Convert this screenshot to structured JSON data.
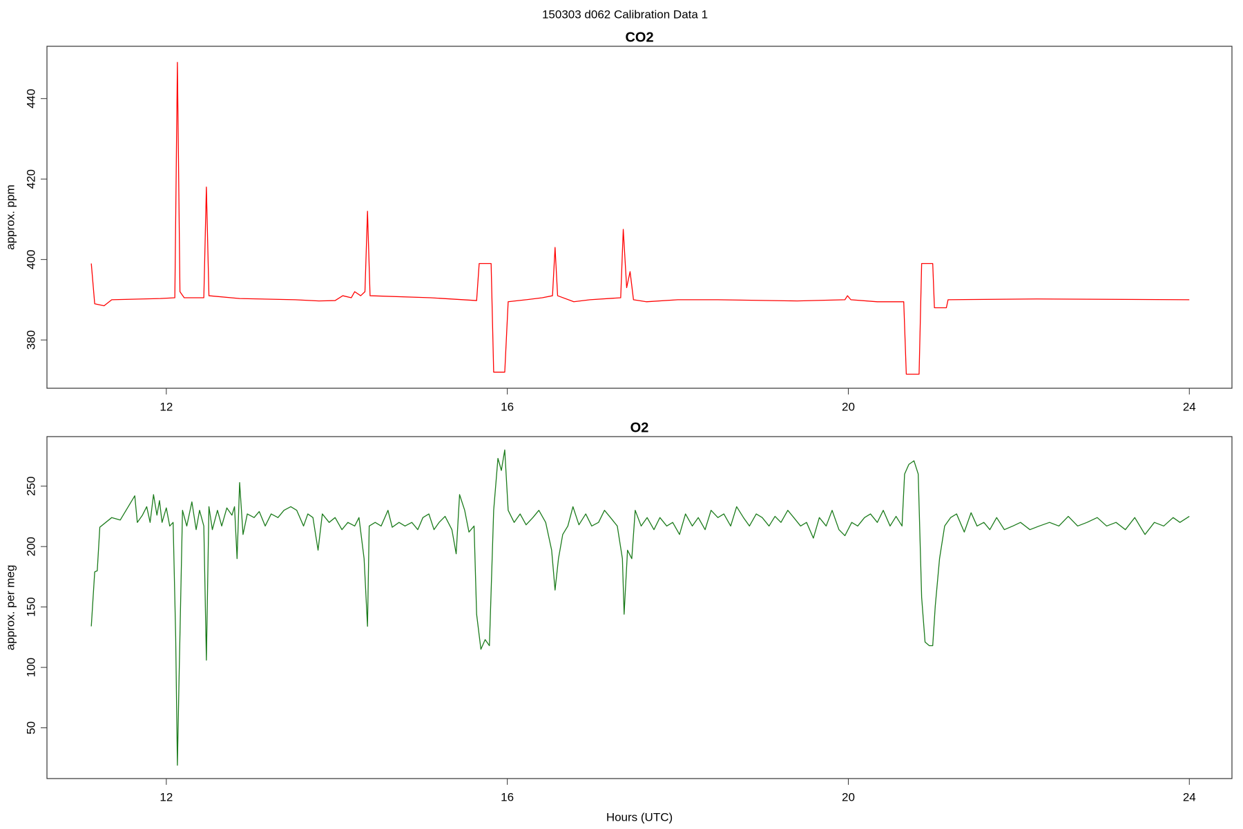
{
  "title": "150303   d062   Calibration Data 1",
  "chart_data": [
    {
      "type": "line",
      "title": "CO2",
      "ylabel": "approx. ppm",
      "color": "#ff0000",
      "xlim": [
        10.6,
        24.5
      ],
      "ylim": [
        368,
        453
      ],
      "xticks": [
        12,
        16,
        20,
        24
      ],
      "yticks": [
        380,
        400,
        420,
        440
      ],
      "grid": false,
      "x": [
        11.12,
        11.16,
        11.27,
        11.36,
        11.93,
        12.1,
        12.13,
        12.16,
        12.21,
        12.44,
        12.47,
        12.5,
        12.86,
        13.51,
        13.79,
        13.98,
        14.07,
        14.17,
        14.21,
        14.28,
        14.33,
        14.36,
        14.39,
        15.1,
        15.64,
        15.67,
        15.81,
        15.84,
        15.97,
        16.01,
        16.22,
        16.41,
        16.53,
        16.56,
        16.59,
        16.78,
        16.97,
        17.33,
        17.36,
        17.4,
        17.44,
        17.48,
        17.63,
        18.0,
        18.47,
        19.4,
        19.96,
        19.99,
        20.03,
        20.34,
        20.65,
        20.68,
        20.83,
        20.86,
        20.99,
        21.01,
        21.15,
        21.17,
        22.21,
        24.0
      ],
      "values": [
        399,
        389,
        388.5,
        390,
        390.3,
        390.5,
        449,
        392,
        390.5,
        390.5,
        418,
        391,
        390.3,
        390,
        389.7,
        389.8,
        391,
        390.5,
        392,
        391,
        392,
        412,
        391,
        390.5,
        389.8,
        399,
        399,
        372,
        372,
        389.5,
        390,
        390.5,
        391,
        403,
        391,
        389.5,
        390,
        390.5,
        407.5,
        393,
        397,
        390,
        389.5,
        390,
        390,
        389.7,
        390,
        391,
        390,
        389.5,
        389.5,
        371.5,
        371.5,
        399,
        399,
        388,
        388,
        390,
        390.2,
        390
      ]
    },
    {
      "type": "line",
      "title": "O2",
      "ylabel": "approx. per meg",
      "xlabel": "Hours (UTC)",
      "color": "#1a7a1a",
      "xlim": [
        10.6,
        24.5
      ],
      "ylim": [
        8,
        291
      ],
      "xticks": [
        12,
        16,
        20,
        24
      ],
      "yticks": [
        50,
        100,
        150,
        200,
        250
      ],
      "grid": false,
      "x": [
        11.12,
        11.16,
        11.19,
        11.22,
        11.36,
        11.46,
        11.63,
        11.66,
        11.72,
        11.77,
        11.81,
        11.85,
        11.89,
        11.92,
        11.95,
        12.0,
        12.04,
        12.08,
        12.11,
        12.13,
        12.15,
        12.19,
        12.24,
        12.3,
        12.35,
        12.39,
        12.44,
        12.47,
        12.5,
        12.54,
        12.6,
        12.65,
        12.71,
        12.77,
        12.8,
        12.83,
        12.86,
        12.9,
        12.95,
        13.03,
        13.09,
        13.16,
        13.23,
        13.31,
        13.38,
        13.46,
        13.53,
        13.61,
        13.66,
        13.72,
        13.78,
        13.83,
        13.91,
        13.98,
        14.06,
        14.13,
        14.21,
        14.26,
        14.32,
        14.36,
        14.38,
        14.45,
        14.52,
        14.6,
        14.65,
        14.73,
        14.8,
        14.88,
        14.95,
        15.01,
        15.08,
        15.14,
        15.2,
        15.27,
        15.35,
        15.4,
        15.44,
        15.5,
        15.55,
        15.61,
        15.64,
        15.69,
        15.74,
        15.79,
        15.84,
        15.89,
        15.93,
        15.97,
        16.01,
        16.08,
        16.15,
        16.22,
        16.3,
        16.37,
        16.45,
        16.52,
        16.56,
        16.6,
        16.65,
        16.71,
        16.77,
        16.84,
        16.92,
        16.99,
        17.07,
        17.14,
        17.21,
        17.29,
        17.35,
        17.37,
        17.41,
        17.46,
        17.5,
        17.57,
        17.64,
        17.72,
        17.79,
        17.87,
        17.94,
        18.02,
        18.09,
        18.17,
        18.24,
        18.32,
        18.39,
        18.47,
        18.54,
        18.62,
        18.69,
        18.77,
        18.84,
        18.92,
        18.99,
        19.07,
        19.14,
        19.21,
        19.29,
        19.36,
        19.44,
        19.51,
        19.59,
        19.66,
        19.74,
        19.81,
        19.89,
        19.96,
        20.04,
        20.11,
        20.19,
        20.26,
        20.34,
        20.41,
        20.49,
        20.56,
        20.63,
        20.66,
        20.71,
        20.77,
        20.82,
        20.86,
        20.9,
        20.95,
        20.99,
        21.02,
        21.07,
        21.13,
        21.2,
        21.27,
        21.36,
        21.44,
        21.51,
        21.59,
        21.66,
        21.74,
        21.83,
        21.93,
        22.02,
        22.13,
        22.24,
        22.36,
        22.47,
        22.58,
        22.69,
        22.8,
        22.92,
        23.03,
        23.14,
        23.25,
        23.36,
        23.48,
        23.59,
        23.7,
        23.81,
        23.89,
        24.0
      ],
      "values": [
        134,
        179,
        180,
        216,
        224,
        222,
        242,
        220,
        226,
        233,
        220,
        243,
        226,
        238,
        220,
        232,
        217,
        220,
        125,
        19,
        92,
        230,
        217,
        237,
        214,
        230,
        217,
        106,
        233,
        214,
        230,
        217,
        232,
        226,
        233,
        190,
        253,
        210,
        227,
        224,
        229,
        217,
        227,
        224,
        230,
        233,
        230,
        217,
        227,
        224,
        197,
        227,
        220,
        224,
        214,
        220,
        217,
        224,
        190,
        134,
        217,
        220,
        217,
        230,
        216,
        220,
        217,
        220,
        214,
        224,
        227,
        214,
        220,
        225,
        214,
        194,
        243,
        230,
        212,
        217,
        144,
        115,
        123,
        118,
        230,
        273,
        263,
        280,
        230,
        220,
        227,
        218,
        224,
        230,
        220,
        197,
        164,
        190,
        210,
        217,
        233,
        218,
        227,
        217,
        220,
        230,
        224,
        217,
        190,
        144,
        197,
        190,
        230,
        217,
        224,
        214,
        224,
        217,
        220,
        210,
        227,
        217,
        224,
        214,
        230,
        224,
        227,
        217,
        233,
        224,
        217,
        227,
        224,
        217,
        225,
        220,
        230,
        224,
        217,
        220,
        207,
        224,
        217,
        230,
        214,
        209,
        220,
        217,
        224,
        227,
        220,
        230,
        217,
        225,
        217,
        260,
        268,
        271,
        260,
        158,
        121,
        118,
        118,
        151,
        190,
        217,
        224,
        227,
        212,
        228,
        217,
        220,
        214,
        224,
        214,
        217,
        220,
        214,
        217,
        220,
        217,
        225,
        217,
        220,
        224,
        217,
        220,
        214,
        224,
        210,
        220,
        217,
        224,
        220,
        225
      ]
    }
  ]
}
